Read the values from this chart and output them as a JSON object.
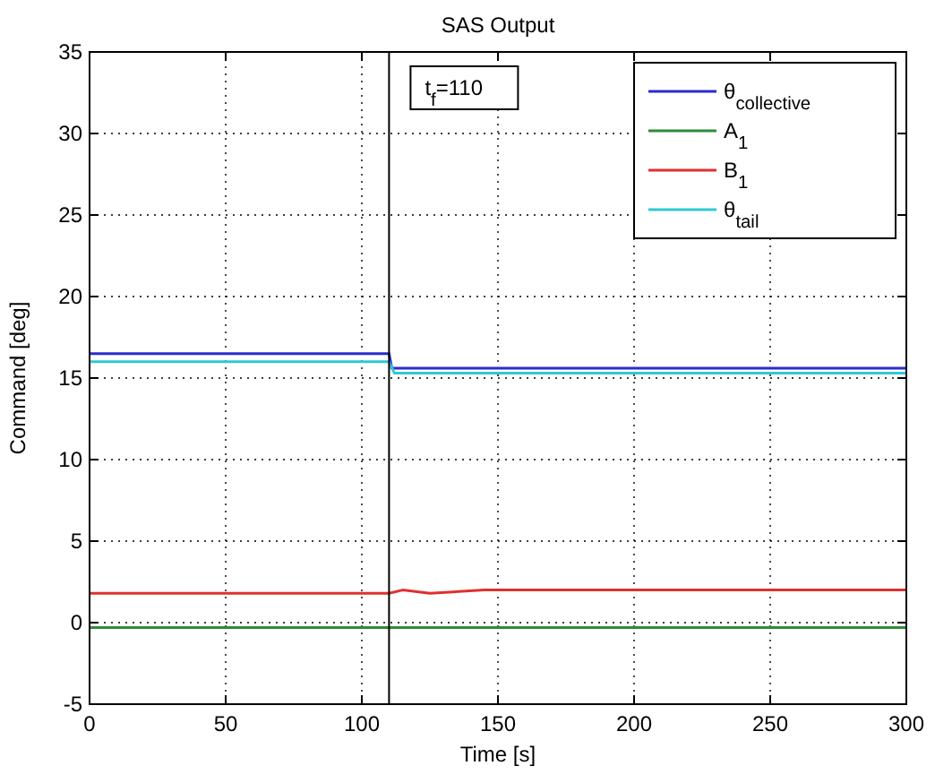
{
  "chart_data": {
    "type": "line",
    "title": "SAS Output",
    "xlabel": "Time [s]",
    "ylabel": "Command [deg]",
    "xlim": [
      0,
      300
    ],
    "xticks": [
      0,
      50,
      100,
      150,
      200,
      250,
      300
    ],
    "ylim": [
      -5,
      35
    ],
    "yticks": [
      -5,
      0,
      5,
      10,
      15,
      20,
      25,
      30,
      35
    ],
    "grid": true,
    "legend": "top right",
    "line_style": "solid",
    "series": [
      {
        "name": "θ$_{collective}$",
        "color": "#2b2bd0",
        "x": [
          0,
          110,
          111,
          300
        ],
        "values": [
          16.5,
          16.5,
          15.6,
          15.6
        ]
      },
      {
        "name": "A$_{1}$",
        "color": "#2e8b3a",
        "x": [
          0,
          300
        ],
        "values": [
          -0.3,
          -0.3
        ]
      },
      {
        "name": "B$_{1}$",
        "color": "#e03030",
        "x": [
          0,
          110,
          115,
          125,
          145,
          300
        ],
        "values": [
          1.8,
          1.8,
          2.0,
          1.8,
          2.0,
          2.0
        ]
      },
      {
        "name": "θ$_{tail}$",
        "color": "#30c8d0",
        "x": [
          0,
          110,
          112,
          300
        ],
        "values": [
          16.0,
          16.0,
          15.3,
          15.3
        ]
      }
    ],
    "ref_lines": [
      {
        "axis": "x",
        "value": 110,
        "color": "#000000"
      }
    ],
    "annotations": [
      "t$_{f}$=110"
    ]
  }
}
